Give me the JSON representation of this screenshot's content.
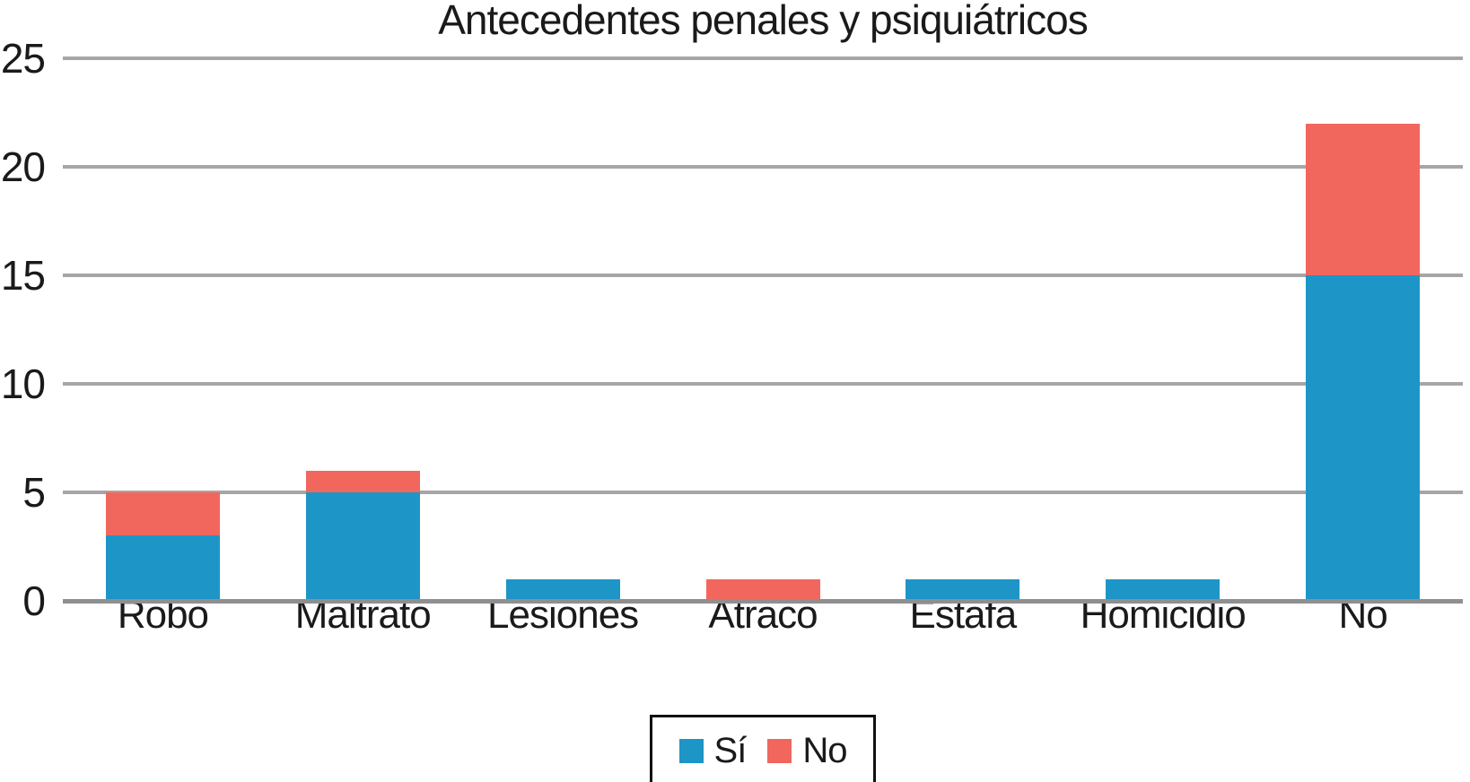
{
  "title": "Antecedentes penales y psiquiátricos",
  "colors": {
    "si_blue": "#1E95C7",
    "no_red": "#F1675E",
    "gridline": "#A6A6A6",
    "axis": "#8F8F8F",
    "text": "#1A1A1A",
    "legend_border": "#111111"
  },
  "legend": {
    "items": [
      "Sí",
      "No"
    ]
  },
  "chart_data": {
    "type": "bar",
    "stacked": true,
    "title": "Antecedentes penales y psiquiátricos",
    "categories": [
      "Robo",
      "Maltrato",
      "Lesiones",
      "Atraco",
      "Estafa",
      "Homicidio",
      "No"
    ],
    "series": [
      {
        "name": "Sí",
        "color": "#1E95C7",
        "values": [
          3,
          5,
          1,
          0,
          1,
          1,
          15
        ]
      },
      {
        "name": "No",
        "color": "#F1675E",
        "values": [
          2,
          1,
          0,
          1,
          0,
          0,
          7
        ]
      }
    ],
    "totals": [
      5,
      6,
      1,
      1,
      1,
      1,
      22
    ],
    "xlabel": "",
    "ylabel": "",
    "ylim": [
      0,
      25
    ],
    "yticks": [
      0,
      5,
      10,
      15,
      20,
      25
    ],
    "grid": true,
    "legend_position": "bottom"
  }
}
